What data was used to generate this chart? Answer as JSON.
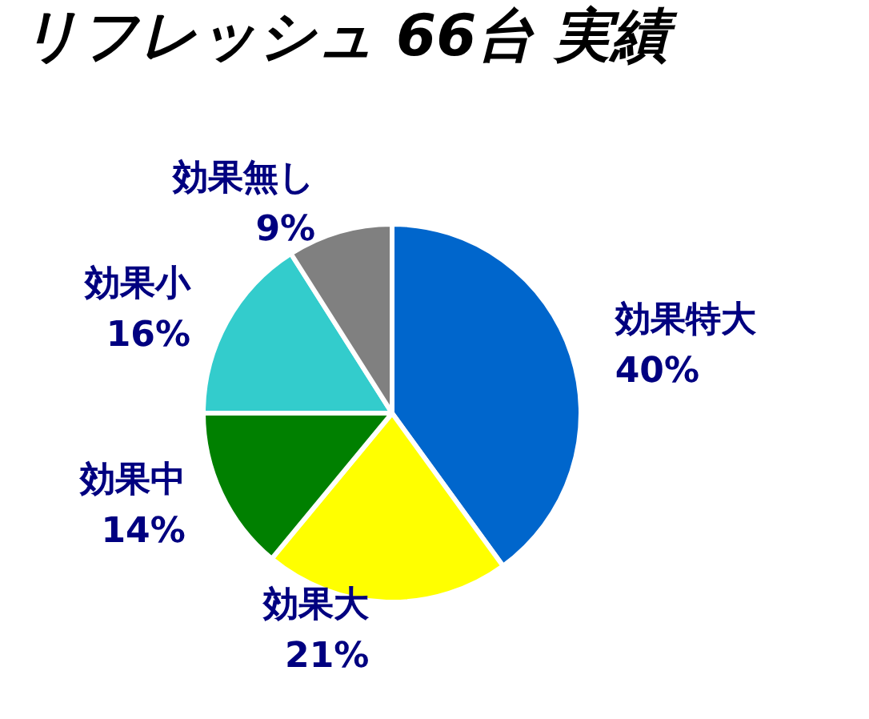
{
  "chart_data": {
    "type": "pie",
    "title": "リフレッシュ 66台 実績",
    "categories": [
      "効果特大",
      "効果大",
      "効果中",
      "効果小",
      "効果無し"
    ],
    "values": [
      40,
      21,
      14,
      16,
      9
    ],
    "value_labels": [
      "40%",
      "21%",
      "14%",
      "16%",
      "9%"
    ],
    "colors": [
      "#0066cc",
      "#ffff00",
      "#008000",
      "#33cccc",
      "#808080"
    ],
    "legend": false
  }
}
